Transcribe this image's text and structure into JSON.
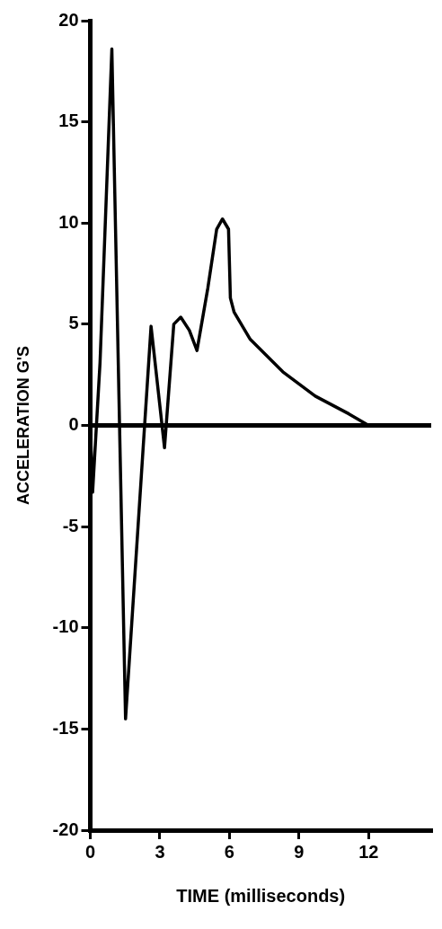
{
  "chart_data": {
    "type": "line",
    "xlabel": "TIME (milliseconds)",
    "ylabel": "ACCELERATION G'S",
    "x": [
      0,
      0.1,
      0.42,
      0.93,
      1.52,
      2.62,
      3.2,
      3.6,
      3.9,
      4.27,
      4.6,
      5.07,
      5.45,
      5.7,
      5.96,
      6.04,
      6.2,
      6.9,
      8.3,
      9.7,
      11.15,
      12
    ],
    "series": [
      {
        "color": "#000000",
        "values": [
          0,
          -3.3,
          3.1,
          18.6,
          -14.5,
          4.9,
          -1.1,
          5.0,
          5.35,
          4.7,
          3.7,
          6.8,
          9.7,
          10.2,
          9.7,
          6.3,
          5.6,
          4.25,
          2.65,
          1.45,
          0.57,
          0
        ]
      }
    ],
    "xlim": [
      0,
      14.7
    ],
    "xticks": [
      0,
      3,
      6,
      9,
      12
    ],
    "ylim": [
      -20,
      20
    ],
    "yticks": [
      20,
      15,
      10,
      5,
      0,
      -5,
      -10,
      -15,
      -20
    ],
    "ref_lines": [
      {
        "axis": "y",
        "value": 0,
        "color": "#000000"
      }
    ],
    "grid": false,
    "legend": false,
    "marker": "none",
    "line_style": "solid"
  }
}
